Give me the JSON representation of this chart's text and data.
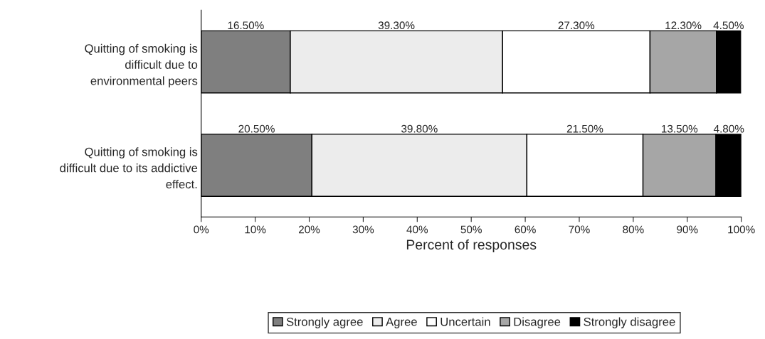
{
  "chart_data": {
    "type": "bar",
    "orientation": "horizontal",
    "stacked": true,
    "xlabel": "Percent of responses",
    "categories": [
      "Quitting of smoking is\ndifficult due to\nenvironmental peers",
      "Quitting of smoking is\ndifficult due to its addictive\neffect."
    ],
    "series": [
      {
        "name": "Strongly agree",
        "color": "#7f7f7f",
        "values": [
          16.5,
          20.5
        ],
        "value_labels": [
          "16.50%",
          "20.50%"
        ]
      },
      {
        "name": "Agree",
        "color": "#ececec",
        "values": [
          39.3,
          39.8
        ],
        "value_labels": [
          "39.30%",
          "39.80%"
        ]
      },
      {
        "name": "Uncertain",
        "color": "#ffffff",
        "values": [
          27.3,
          21.5
        ],
        "value_labels": [
          "27.30%",
          "21.50%"
        ]
      },
      {
        "name": "Disagree",
        "color": "#a6a6a6",
        "values": [
          12.3,
          13.5
        ],
        "value_labels": [
          "12.30%",
          "13.50%"
        ]
      },
      {
        "name": "Strongly disagree",
        "color": "#000000",
        "values": [
          4.5,
          4.8
        ],
        "value_labels": [
          "4.50%",
          "4.80%"
        ]
      }
    ],
    "xlim": [
      0,
      100
    ],
    "xticks": [
      {
        "value": 0,
        "label": "0%"
      },
      {
        "value": 10,
        "label": "10%"
      },
      {
        "value": 20,
        "label": "20%"
      },
      {
        "value": 30,
        "label": "30%"
      },
      {
        "value": 40,
        "label": "40%"
      },
      {
        "value": 50,
        "label": "50%"
      },
      {
        "value": 60,
        "label": "60%"
      },
      {
        "value": 70,
        "label": "70%"
      },
      {
        "value": 80,
        "label": "80%"
      },
      {
        "value": 90,
        "label": "90%"
      },
      {
        "value": 100,
        "label": "100%"
      }
    ],
    "grid": false,
    "legend": "bottom"
  }
}
